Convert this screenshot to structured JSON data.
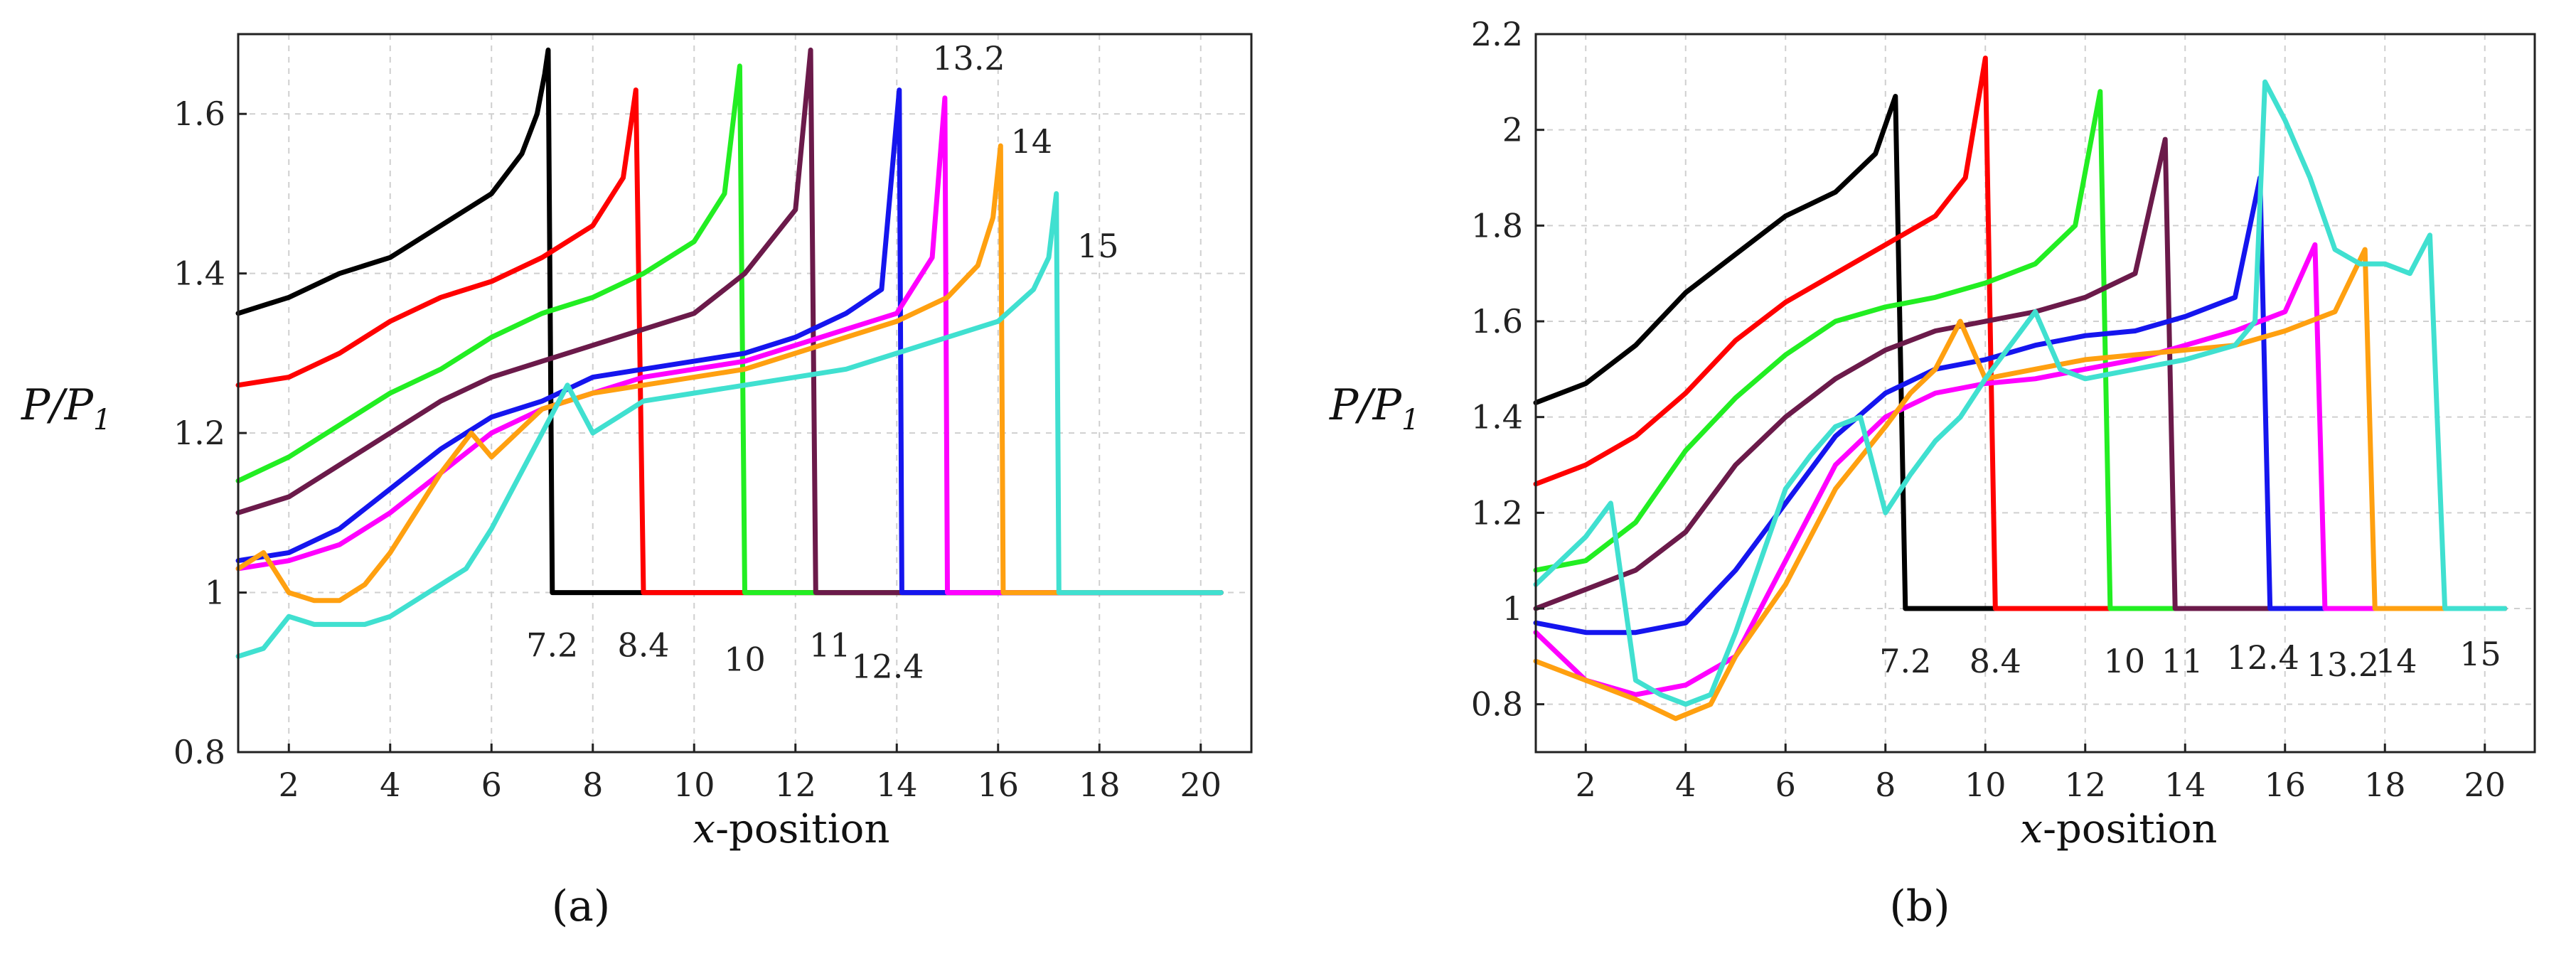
{
  "chart_data": [
    {
      "type": "line",
      "panel_label": "a",
      "caption": "(a)",
      "xlabel_italic": "x",
      "xlabel_rest": "-position",
      "ylabel_main": "P/P",
      "ylabel_sub": "1",
      "xlim": [
        1,
        21
      ],
      "ylim": [
        0.8,
        1.7
      ],
      "x_ticks": [
        "2",
        "4",
        "6",
        "8",
        "10",
        "12",
        "14",
        "16",
        "18",
        "20"
      ],
      "y_ticks": [
        "0.8",
        "1",
        "1.2",
        "1.4",
        "1.6"
      ],
      "y_tick_values": [
        0.8,
        1.0,
        1.2,
        1.4,
        1.6
      ],
      "x_tick_values": [
        2,
        4,
        6,
        8,
        10,
        12,
        14,
        16,
        18,
        20
      ],
      "grid": true,
      "series": [
        {
          "name": "7.2",
          "color": "#000000",
          "shock_x": 7.2,
          "annotation": "7.2",
          "x": [
            1,
            2,
            3,
            4,
            5,
            6,
            6.6,
            6.9,
            7.05,
            7.12,
            7.2
          ],
          "y": [
            1.35,
            1.37,
            1.4,
            1.42,
            1.46,
            1.5,
            1.55,
            1.6,
            1.65,
            1.68,
            1.0
          ]
        },
        {
          "name": "8.4",
          "color": "#ff0000",
          "shock_x": 9.0,
          "annotation": "8.4",
          "x": [
            1,
            2,
            3,
            4,
            5,
            6,
            7,
            8,
            8.6,
            8.85,
            9.0
          ],
          "y": [
            1.26,
            1.27,
            1.3,
            1.34,
            1.37,
            1.39,
            1.42,
            1.46,
            1.52,
            1.63,
            1.0
          ]
        },
        {
          "name": "10",
          "color": "#22ee22",
          "shock_x": 11.0,
          "annotation": "10",
          "x": [
            1,
            2,
            3,
            4,
            5,
            6,
            7,
            8,
            9,
            10,
            10.6,
            10.9,
            11.0
          ],
          "y": [
            1.14,
            1.17,
            1.21,
            1.25,
            1.28,
            1.32,
            1.35,
            1.37,
            1.4,
            1.44,
            1.5,
            1.66,
            1.0
          ]
        },
        {
          "name": "11",
          "color": "#6b1a4a",
          "shock_x": 12.4,
          "annotation": "11",
          "x": [
            1,
            2,
            3,
            4,
            5,
            6,
            7,
            8,
            9,
            10,
            11,
            12,
            12.3,
            12.4
          ],
          "y": [
            1.1,
            1.12,
            1.16,
            1.2,
            1.24,
            1.27,
            1.29,
            1.31,
            1.33,
            1.35,
            1.4,
            1.48,
            1.68,
            1.0
          ]
        },
        {
          "name": "12.4",
          "color": "#1515ee",
          "shock_x": 14.1,
          "annotation": "12.4",
          "x": [
            1,
            2,
            3,
            4,
            5,
            6,
            7,
            8,
            9,
            10,
            11,
            12,
            13,
            13.7,
            14.05,
            14.1
          ],
          "y": [
            1.04,
            1.05,
            1.08,
            1.13,
            1.18,
            1.22,
            1.24,
            1.27,
            1.28,
            1.29,
            1.3,
            1.32,
            1.35,
            1.38,
            1.63,
            1.0
          ]
        },
        {
          "name": "13.2",
          "color": "#ff00ff",
          "shock_x": 15.0,
          "annotation": "13.2",
          "x": [
            1,
            2,
            3,
            4,
            5,
            6,
            7,
            8,
            9,
            10,
            11,
            12,
            13,
            14,
            14.7,
            14.95,
            15.0
          ],
          "y": [
            1.03,
            1.04,
            1.06,
            1.1,
            1.15,
            1.2,
            1.23,
            1.25,
            1.27,
            1.28,
            1.29,
            1.31,
            1.33,
            1.35,
            1.42,
            1.62,
            1.0
          ]
        },
        {
          "name": "14",
          "color": "#ffa010",
          "shock_x": 16.1,
          "annotation": "14",
          "x": [
            1,
            1.5,
            2,
            2.5,
            3,
            3.5,
            4,
            4.5,
            5,
            5.6,
            6,
            6.5,
            7,
            8,
            9,
            10,
            11,
            12,
            13,
            14,
            15,
            15.6,
            15.9,
            16.05,
            16.1
          ],
          "y": [
            1.03,
            1.05,
            1.0,
            0.99,
            0.99,
            1.01,
            1.05,
            1.1,
            1.15,
            1.2,
            1.17,
            1.2,
            1.23,
            1.25,
            1.26,
            1.27,
            1.28,
            1.3,
            1.32,
            1.34,
            1.37,
            1.41,
            1.47,
            1.56,
            1.0
          ]
        },
        {
          "name": "15",
          "color": "#40e0d0",
          "shock_x": 17.2,
          "annotation": "15",
          "x": [
            1,
            1.5,
            2,
            2.5,
            3,
            3.5,
            4,
            4.5,
            5,
            5.5,
            6,
            6.5,
            7,
            7.5,
            8,
            8.5,
            9,
            10,
            11,
            12,
            13,
            14,
            15,
            16,
            16.7,
            17.0,
            17.15,
            17.2
          ],
          "y": [
            0.92,
            0.93,
            0.97,
            0.96,
            0.96,
            0.96,
            0.97,
            0.99,
            1.01,
            1.03,
            1.08,
            1.14,
            1.2,
            1.26,
            1.2,
            1.22,
            1.24,
            1.25,
            1.26,
            1.27,
            1.28,
            1.3,
            1.32,
            1.34,
            1.38,
            1.42,
            1.5,
            1.0
          ]
        }
      ]
    },
    {
      "type": "line",
      "panel_label": "b",
      "caption": "(b)",
      "xlabel_italic": "x",
      "xlabel_rest": "-position",
      "ylabel_main": "P/P",
      "ylabel_sub": "1",
      "xlim": [
        1,
        21
      ],
      "ylim": [
        0.7,
        2.2
      ],
      "x_ticks": [
        "2",
        "4",
        "6",
        "8",
        "10",
        "12",
        "14",
        "16",
        "18",
        "20"
      ],
      "y_ticks": [
        "0.8",
        "1",
        "1.2",
        "1.4",
        "1.6",
        "1.8",
        "2",
        "2.2"
      ],
      "y_tick_values": [
        0.8,
        1.0,
        1.2,
        1.4,
        1.6,
        1.8,
        2.0,
        2.2
      ],
      "x_tick_values": [
        2,
        4,
        6,
        8,
        10,
        12,
        14,
        16,
        18,
        20
      ],
      "grid": true,
      "series": [
        {
          "name": "7.2",
          "color": "#000000",
          "shock_x": 8.4,
          "annotation": "7.2",
          "x": [
            1,
            2,
            3,
            4,
            5,
            6,
            7,
            7.8,
            8.2,
            8.4
          ],
          "y": [
            1.43,
            1.47,
            1.55,
            1.66,
            1.74,
            1.82,
            1.87,
            1.95,
            2.07,
            1.0
          ]
        },
        {
          "name": "8.4",
          "color": "#ff0000",
          "shock_x": 10.2,
          "annotation": "8.4",
          "x": [
            1,
            2,
            3,
            4,
            5,
            6,
            7,
            8,
            9,
            9.6,
            10.0,
            10.2
          ],
          "y": [
            1.26,
            1.3,
            1.36,
            1.45,
            1.56,
            1.64,
            1.7,
            1.76,
            1.82,
            1.9,
            2.15,
            1.0
          ]
        },
        {
          "name": "10",
          "color": "#22ee22",
          "shock_x": 12.5,
          "annotation": "10",
          "x": [
            1,
            2,
            3,
            4,
            5,
            6,
            7,
            8,
            9,
            10,
            11,
            11.8,
            12.3,
            12.5
          ],
          "y": [
            1.08,
            1.1,
            1.18,
            1.33,
            1.44,
            1.53,
            1.6,
            1.63,
            1.65,
            1.68,
            1.72,
            1.8,
            2.08,
            1.0
          ]
        },
        {
          "name": "11",
          "color": "#6b1a4a",
          "shock_x": 13.8,
          "annotation": "11",
          "x": [
            1,
            2,
            3,
            4,
            5,
            6,
            7,
            8,
            9,
            10,
            11,
            12,
            13,
            13.6,
            13.8
          ],
          "y": [
            1.0,
            1.04,
            1.08,
            1.16,
            1.3,
            1.4,
            1.48,
            1.54,
            1.58,
            1.6,
            1.62,
            1.65,
            1.7,
            1.98,
            1.0
          ]
        },
        {
          "name": "12.4",
          "color": "#1515ee",
          "shock_x": 15.7,
          "annotation": "12.4",
          "x": [
            1,
            2,
            3,
            4,
            5,
            6,
            7,
            8,
            9,
            10,
            11,
            12,
            13,
            14,
            15,
            15.5,
            15.7
          ],
          "y": [
            0.97,
            0.95,
            0.95,
            0.97,
            1.08,
            1.22,
            1.36,
            1.45,
            1.5,
            1.52,
            1.55,
            1.57,
            1.58,
            1.61,
            1.65,
            1.9,
            1.0
          ]
        },
        {
          "name": "13.2",
          "color": "#ff00ff",
          "shock_x": 16.8,
          "annotation": "13.2",
          "x": [
            1,
            2,
            3,
            4,
            5,
            6,
            7,
            8,
            9,
            10,
            11,
            12,
            13,
            14,
            15,
            16,
            16.6,
            16.8
          ],
          "y": [
            0.95,
            0.85,
            0.82,
            0.84,
            0.9,
            1.1,
            1.3,
            1.4,
            1.45,
            1.47,
            1.48,
            1.5,
            1.52,
            1.55,
            1.58,
            1.62,
            1.76,
            1.0
          ]
        },
        {
          "name": "14",
          "color": "#ffa010",
          "shock_x": 17.8,
          "annotation": "14",
          "x": [
            1,
            2,
            3,
            3.8,
            4.5,
            5,
            6,
            7,
            8,
            8.5,
            9,
            9.5,
            10,
            11,
            12,
            13,
            14,
            15,
            16,
            17,
            17.6,
            17.8
          ],
          "y": [
            0.89,
            0.85,
            0.81,
            0.77,
            0.8,
            0.9,
            1.05,
            1.25,
            1.38,
            1.45,
            1.5,
            1.6,
            1.48,
            1.5,
            1.52,
            1.53,
            1.54,
            1.55,
            1.58,
            1.62,
            1.75,
            1.0
          ]
        },
        {
          "name": "15",
          "color": "#40e0d0",
          "shock_x": 19.2,
          "annotation": "15",
          "x": [
            1,
            1.5,
            2,
            2.5,
            3,
            3.5,
            4,
            4.5,
            5,
            5.5,
            6,
            6.5,
            7,
            7.5,
            8,
            8.5,
            9,
            9.5,
            10,
            10.5,
            11,
            11.5,
            12,
            13,
            14,
            15,
            15.4,
            15.6,
            16,
            16.5,
            17,
            17.5,
            18,
            18.5,
            18.9,
            19.2
          ],
          "y": [
            1.05,
            1.1,
            1.15,
            1.22,
            0.85,
            0.82,
            0.8,
            0.82,
            0.95,
            1.1,
            1.25,
            1.32,
            1.38,
            1.4,
            1.2,
            1.28,
            1.35,
            1.4,
            1.48,
            1.55,
            1.62,
            1.5,
            1.48,
            1.5,
            1.52,
            1.55,
            1.6,
            2.1,
            2.02,
            1.9,
            1.75,
            1.72,
            1.72,
            1.7,
            1.78,
            1.0
          ]
        }
      ]
    }
  ]
}
